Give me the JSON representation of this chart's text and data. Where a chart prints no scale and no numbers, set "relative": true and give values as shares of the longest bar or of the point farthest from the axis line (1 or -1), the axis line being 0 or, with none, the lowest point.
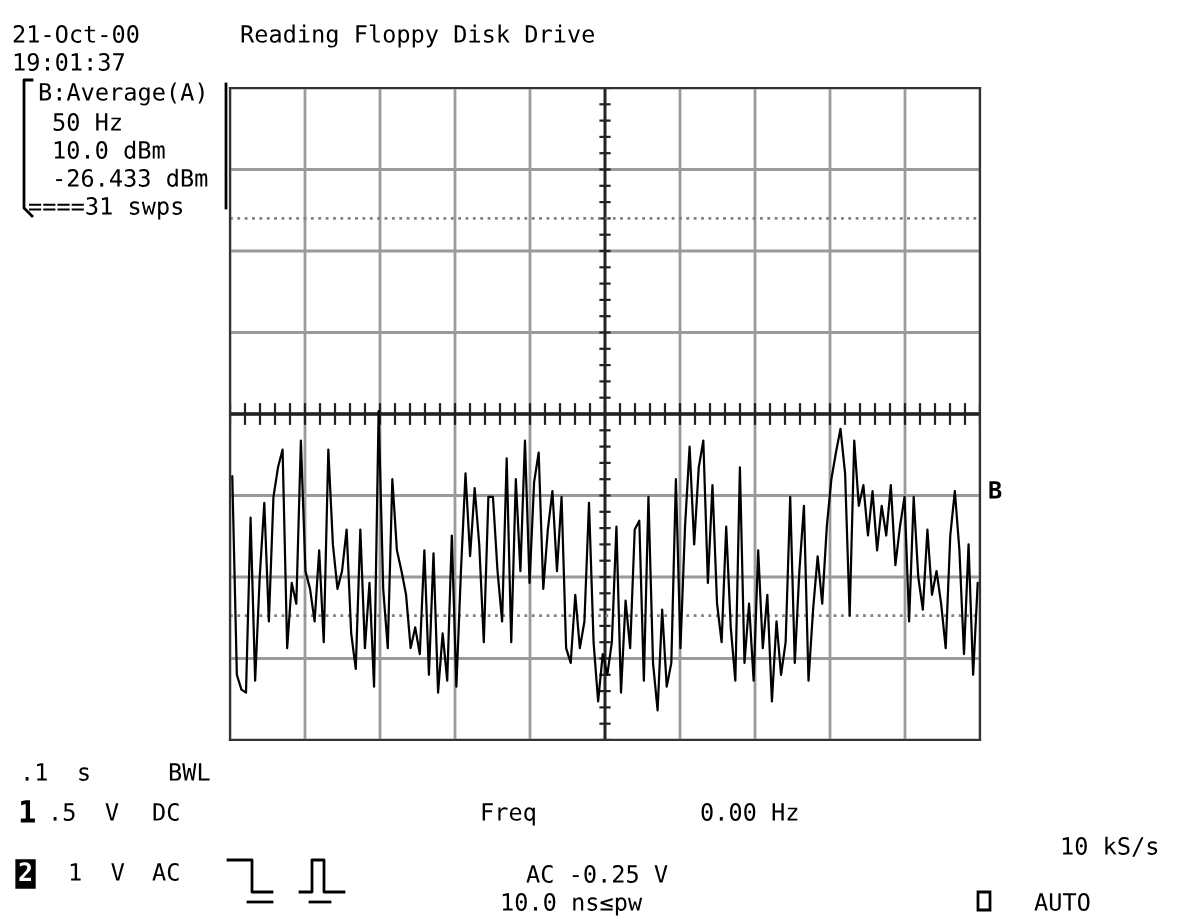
{
  "chart_data": {
    "type": "line",
    "relative": true,
    "title": "Reading Floppy Disk Drive",
    "annotations": [
      "21-Oct-00",
      "19:01:37",
      "B:Average(A)",
      "50 Hz",
      "10.0 dBm",
      "-26.433 dBm",
      "====31 swps",
      ".1  s",
      "BWL",
      "1",
      ".5  V",
      "DC",
      "Freq",
      "0.00 Hz",
      "10 kS/s",
      "2",
      "1  V",
      "AC",
      "AC -0.25 V",
      "10.0 ns≤pw",
      "AUTO",
      "B"
    ],
    "grid": true,
    "marker": "none",
    "line_style": "solid",
    "tick_labels": false,
    "ref_lines": [
      {
        "axis": "y",
        "value": 0.66,
        "color": "#808080",
        "line_style": "dotted"
      },
      {
        "axis": "y",
        "value": -0.68,
        "color": "#808080",
        "line_style": "dotted"
      }
    ],
    "categories": [
      null,
      null,
      null,
      null,
      null,
      null,
      null,
      null,
      null,
      null,
      null,
      null,
      null,
      null,
      null,
      null,
      null,
      null,
      null,
      null,
      null,
      null,
      null,
      null,
      null,
      null,
      null,
      null,
      null,
      null,
      null,
      null,
      null,
      null,
      null,
      null,
      null,
      null,
      null,
      null,
      null,
      null,
      null,
      null,
      null,
      null,
      null,
      null,
      null,
      null,
      null,
      null,
      null,
      null,
      null,
      null,
      null,
      null,
      null,
      null,
      null,
      null,
      null,
      null,
      null,
      null,
      null,
      null,
      null,
      null,
      null,
      null,
      null,
      null,
      null,
      null,
      null,
      null,
      null,
      null,
      null,
      null,
      null,
      null,
      null,
      null,
      null,
      null,
      null,
      null,
      null,
      null,
      null,
      null,
      null,
      null,
      null,
      null,
      null,
      null,
      null,
      null,
      null,
      null,
      null,
      null,
      null,
      null,
      null,
      null,
      null,
      null,
      null,
      null,
      null,
      null,
      null,
      null,
      null,
      null,
      null,
      null,
      null,
      null,
      null,
      null,
      null,
      null,
      null,
      null,
      null,
      null,
      null,
      null,
      null,
      null,
      null,
      null,
      null,
      null,
      null,
      null,
      null,
      null,
      null,
      null,
      null,
      null,
      null,
      null,
      null,
      null,
      null,
      null,
      null,
      null,
      null,
      null,
      null,
      null,
      null,
      null,
      null,
      null
    ],
    "series": [
      {
        "color": "#000000",
        "values": [
          -0.21,
          -0.88,
          -0.93,
          -0.94,
          -0.35,
          -0.9,
          -0.55,
          -0.3,
          -0.7,
          -0.28,
          -0.18,
          -0.12,
          -0.79,
          -0.57,
          -0.64,
          -0.09,
          -0.53,
          -0.59,
          -0.7,
          -0.46,
          -0.77,
          -0.12,
          -0.44,
          -0.59,
          -0.53,
          -0.39,
          -0.74,
          -0.86,
          -0.39,
          -0.79,
          -0.57,
          -0.92,
          0.01,
          -0.59,
          -0.79,
          -0.22,
          -0.46,
          -0.53,
          -0.61,
          -0.79,
          -0.72,
          -0.81,
          -0.46,
          -0.88,
          -0.47,
          -0.94,
          -0.74,
          -0.9,
          -0.41,
          -0.92,
          -0.53,
          -0.2,
          -0.48,
          -0.25,
          -0.44,
          -0.77,
          -0.28,
          -0.28,
          -0.53,
          -0.7,
          -0.15,
          -0.77,
          -0.22,
          -0.53,
          -0.09,
          -0.57,
          -0.23,
          -0.13,
          -0.59,
          -0.39,
          -0.26,
          -0.53,
          -0.28,
          -0.79,
          -0.84,
          -0.61,
          -0.79,
          -0.7,
          -0.3,
          -0.77,
          -0.97,
          -0.81,
          -0.88,
          -0.77,
          -0.38,
          -0.94,
          -0.63,
          -0.79,
          -0.39,
          -0.36,
          -0.9,
          -0.28,
          -0.84,
          -1,
          -0.66,
          -0.92,
          -0.84,
          -0.22,
          -0.79,
          -0.38,
          -0.11,
          -0.44,
          -0.18,
          -0.09,
          -0.57,
          -0.24,
          -0.64,
          -0.77,
          -0.38,
          -0.72,
          -0.9,
          -0.18,
          -0.84,
          -0.64,
          -0.9,
          -0.46,
          -0.79,
          -0.61,
          -0.97,
          -0.7,
          -0.88,
          -0.77,
          -0.28,
          -0.84,
          -0.53,
          -0.31,
          -0.9,
          -0.66,
          -0.48,
          -0.64,
          -0.38,
          -0.22,
          -0.13,
          -0.05,
          -0.2,
          -0.68,
          -0.09,
          -0.31,
          -0.24,
          -0.41,
          -0.26,
          -0.46,
          -0.31,
          -0.41,
          -0.24,
          -0.51,
          -0.38,
          -0.28,
          -0.7,
          -0.28,
          -0.55,
          -0.66,
          -0.39,
          -0.61,
          -0.53,
          -0.64,
          -0.79,
          -0.41,
          -0.26,
          -0.46,
          -0.81,
          -0.44,
          -0.88,
          -0.57
        ]
      }
    ]
  }
}
